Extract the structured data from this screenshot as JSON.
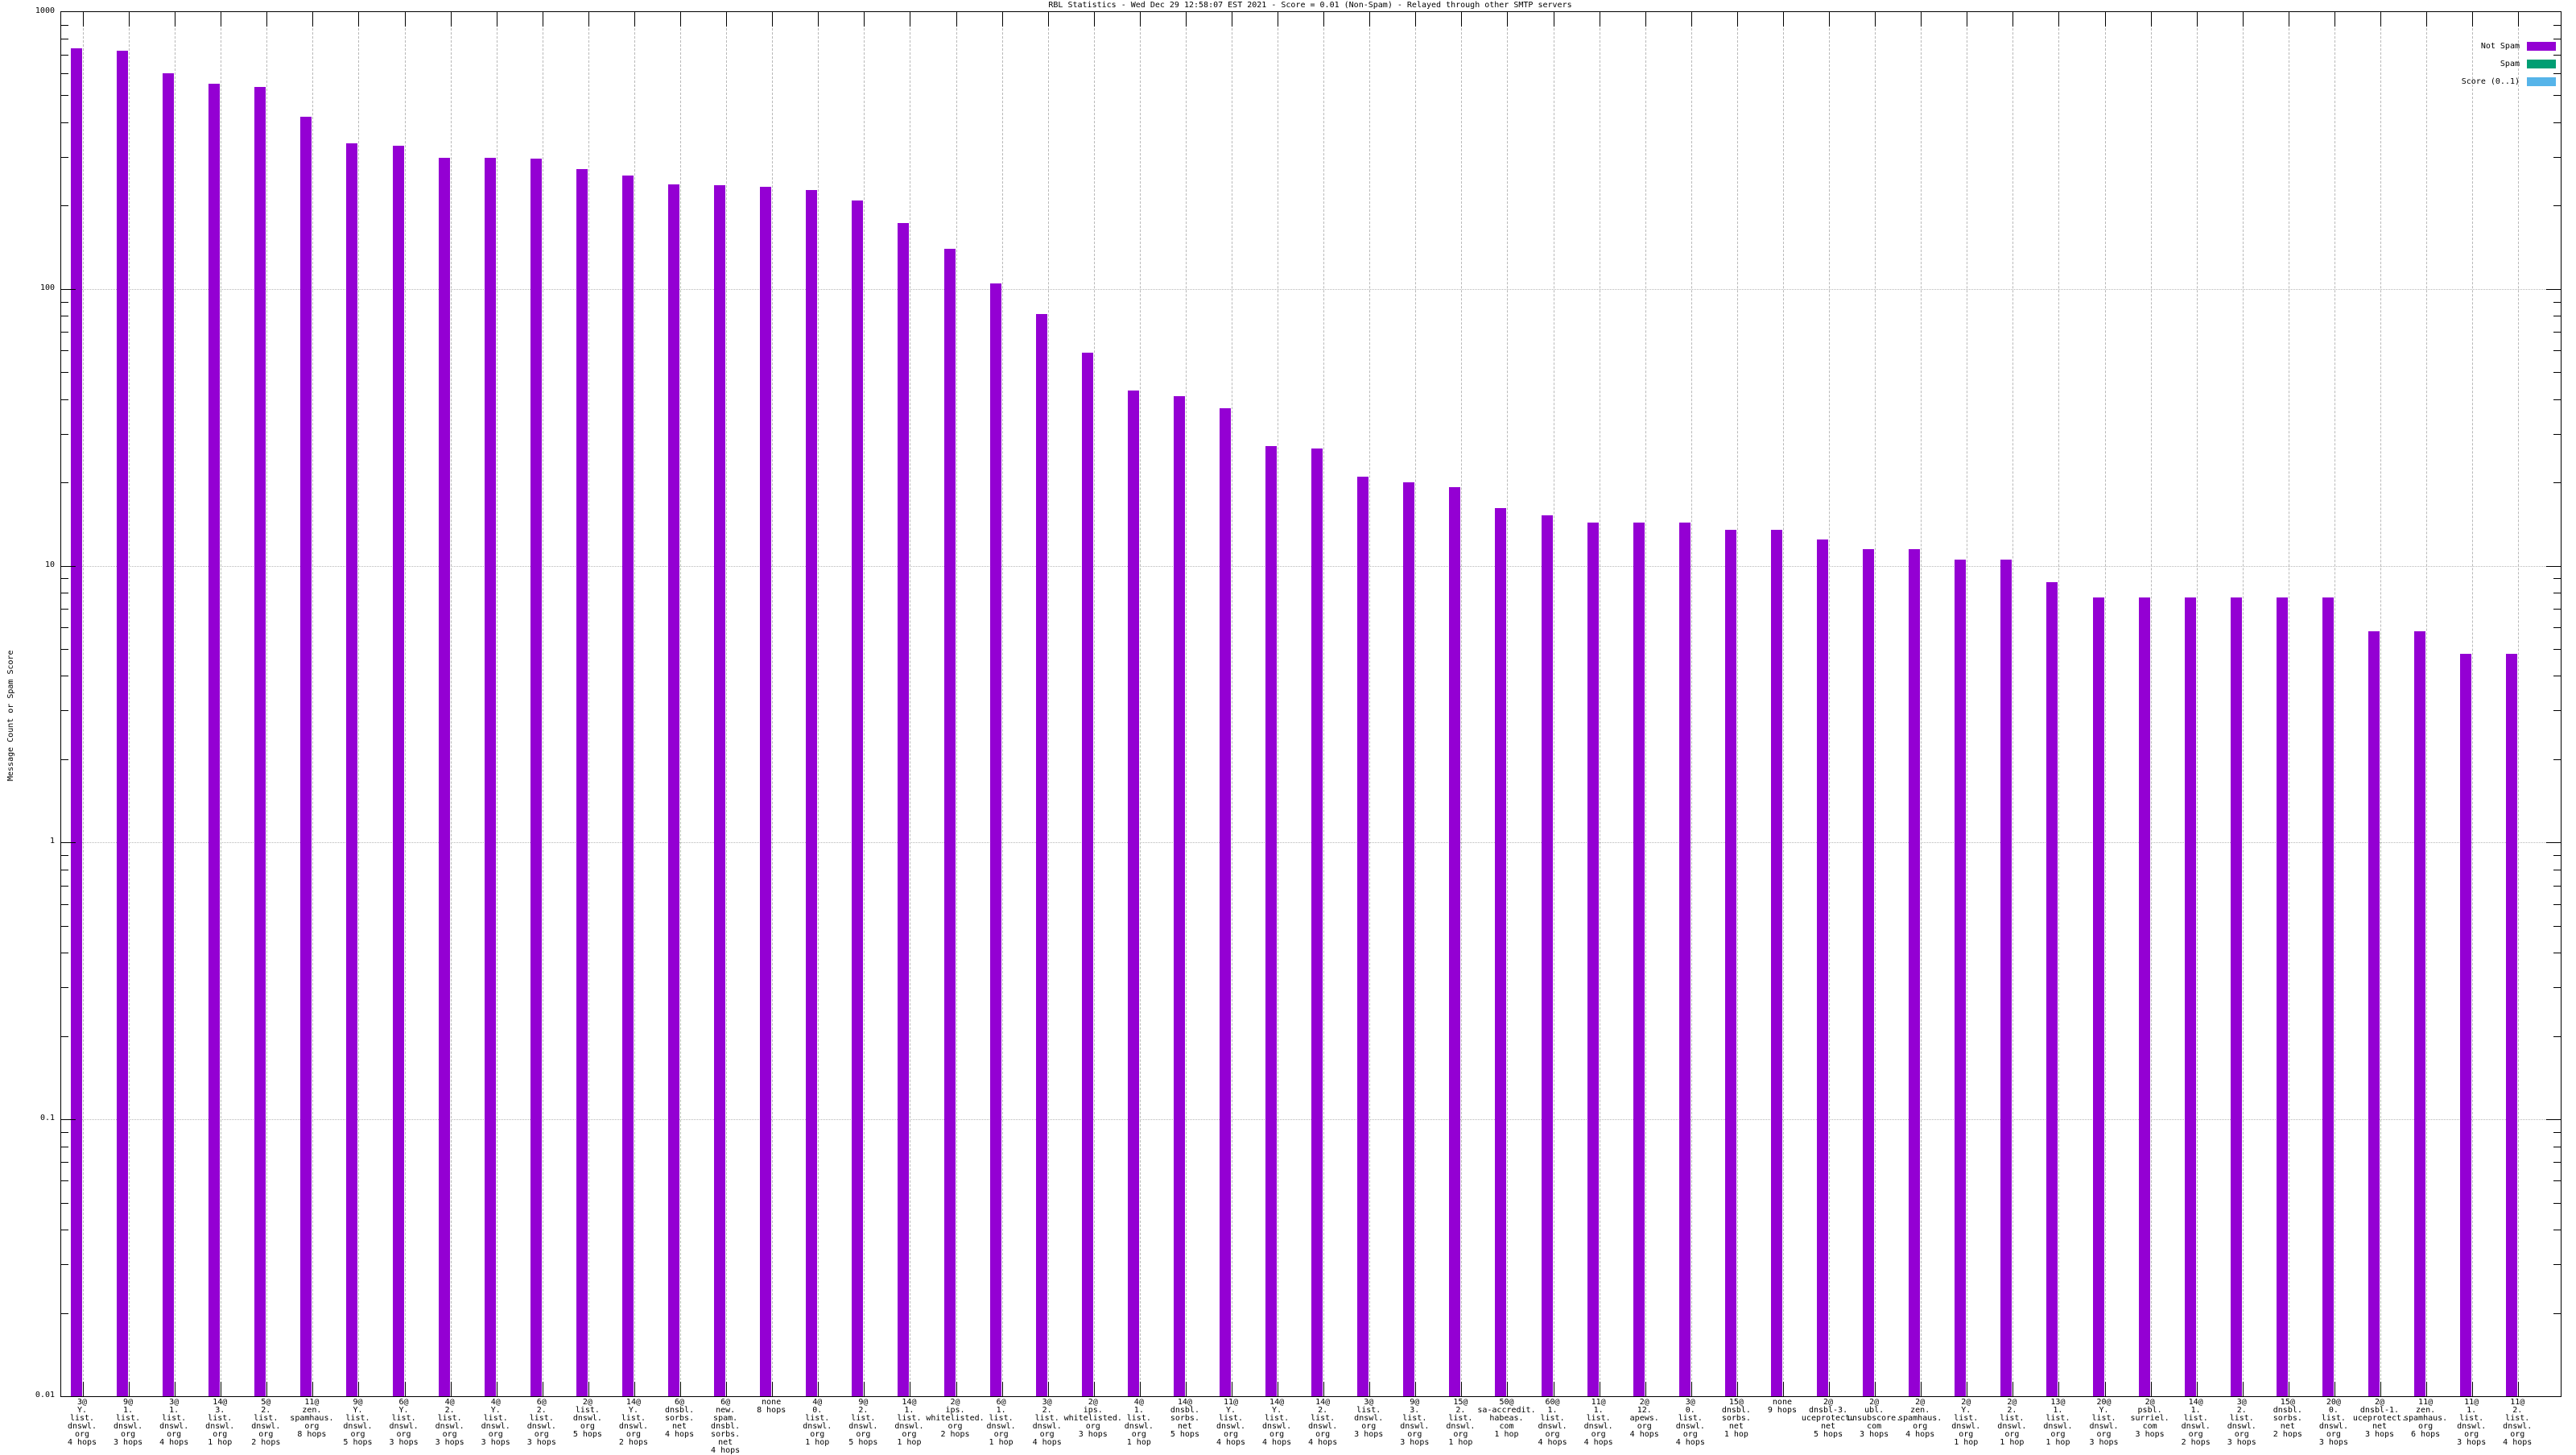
{
  "title": "RBL Statistics - Wed Dec 29 12:58:07 EST 2021 - Score = 0.01 (Non-Spam) - Relayed through other SMTP servers",
  "y_axis": {
    "label": "Message Count or Spam Score",
    "tick_labels": [
      "1000",
      "100",
      "10",
      "1",
      "0.1",
      "0.01"
    ]
  },
  "legend": {
    "items": [
      {
        "label": "Not Spam",
        "color": "#9400D3"
      },
      {
        "label": "Spam",
        "color": "#009E73"
      },
      {
        "label": "Score (0..1)",
        "color": "#56B4E9"
      }
    ]
  },
  "chart_data": {
    "type": "bar",
    "title": "RBL Statistics - Wed Dec 29 12:58:07 EST 2021 - Score = 0.01 (Non-Spam) - Relayed through other SMTP servers",
    "xlabel": "",
    "ylabel": "Message Count or Spam Score",
    "y_scale": "log10",
    "ylim": [
      0.01,
      1000
    ],
    "y_ticks": [
      1000,
      100,
      10,
      1,
      0.1,
      0.01
    ],
    "grid": true,
    "legend_position": "top-right",
    "series_name": "Not Spam",
    "bar_color": "#9400D3",
    "bars": [
      {
        "lines": [
          "3@",
          "Y.",
          "list.",
          "dnswl.",
          "org",
          "4 hops"
        ],
        "value": 740
      },
      {
        "lines": [
          "9@",
          "1.",
          "list.",
          "dnswl.",
          "org",
          "3 hops"
        ],
        "value": 725
      },
      {
        "lines": [
          "3@",
          "1.",
          "list.",
          "dnswl.",
          "org",
          "4 hops"
        ],
        "value": 600
      },
      {
        "lines": [
          "14@",
          "3.",
          "list.",
          "dnswl.",
          "org",
          "1 hop"
        ],
        "value": 550
      },
      {
        "lines": [
          "5@",
          "2.",
          "list.",
          "dnswl.",
          "org",
          "2 hops"
        ],
        "value": 535
      },
      {
        "lines": [
          "11@",
          "zen.",
          "spamhaus.",
          "org",
          "8 hops"
        ],
        "value": 420
      },
      {
        "lines": [
          "9@",
          "Y.",
          "list.",
          "dnswl.",
          "org",
          "5 hops"
        ],
        "value": 335
      },
      {
        "lines": [
          "6@",
          "Y.",
          "list.",
          "dnswl.",
          "org",
          "3 hops"
        ],
        "value": 330
      },
      {
        "lines": [
          "4@",
          "2.",
          "list.",
          "dnswl.",
          "org",
          "3 hops"
        ],
        "value": 298
      },
      {
        "lines": [
          "4@",
          "Y.",
          "list.",
          "dnswl.",
          "org",
          "3 hops"
        ],
        "value": 298
      },
      {
        "lines": [
          "6@",
          "2.",
          "list.",
          "dnswl.",
          "org",
          "3 hops"
        ],
        "value": 296
      },
      {
        "lines": [
          "2@",
          "list.",
          "dnswl.",
          "org",
          "5 hops"
        ],
        "value": 270
      },
      {
        "lines": [
          "14@",
          "Y.",
          "list.",
          "dnswl.",
          "org",
          "2 hops"
        ],
        "value": 257
      },
      {
        "lines": [
          "6@",
          "dnsbl.",
          "sorbs.",
          "net",
          "4 hops"
        ],
        "value": 238
      },
      {
        "lines": [
          "6@",
          "new.",
          "spam.",
          "dnsbl.",
          "sorbs.",
          "net",
          "4 hops"
        ],
        "value": 237
      },
      {
        "lines": [
          "none",
          "8 hops"
        ],
        "value": 234
      },
      {
        "lines": [
          "4@",
          "0.",
          "list.",
          "dnswl.",
          "org",
          "1 hop"
        ],
        "value": 228
      },
      {
        "lines": [
          "9@",
          "2.",
          "list.",
          "dnswl.",
          "org",
          "5 hops"
        ],
        "value": 208
      },
      {
        "lines": [
          "14@",
          "1.",
          "list.",
          "dnswl.",
          "org",
          "1 hop"
        ],
        "value": 173
      },
      {
        "lines": [
          "2@",
          "ips.",
          "whitelisted.",
          "org",
          "2 hops"
        ],
        "value": 140
      },
      {
        "lines": [
          "6@",
          "1.",
          "list.",
          "dnswl.",
          "org",
          "1 hop"
        ],
        "value": 105
      },
      {
        "lines": [
          "3@",
          "2.",
          "list.",
          "dnswl.",
          "org",
          "4 hops"
        ],
        "value": 81
      },
      {
        "lines": [
          "2@",
          "ips.",
          "whitelisted.",
          "org",
          "3 hops"
        ],
        "value": 59
      },
      {
        "lines": [
          "4@",
          "1.",
          "list.",
          "dnswl.",
          "org",
          "1 hop"
        ],
        "value": 43
      },
      {
        "lines": [
          "14@",
          "dnsbl.",
          "sorbs.",
          "net",
          "5 hops"
        ],
        "value": 41
      },
      {
        "lines": [
          "11@",
          "Y.",
          "list.",
          "dnswl.",
          "org",
          "4 hops"
        ],
        "value": 37
      },
      {
        "lines": [
          "14@",
          "Y.",
          "list.",
          "dnswl.",
          "org",
          "4 hops"
        ],
        "value": 27
      },
      {
        "lines": [
          "14@",
          "2.",
          "list.",
          "dnswl.",
          "org",
          "4 hops"
        ],
        "value": 26.5
      },
      {
        "lines": [
          "3@",
          "list.",
          "dnswl.",
          "org",
          "3 hops"
        ],
        "value": 21
      },
      {
        "lines": [
          "9@",
          "3.",
          "list.",
          "dnswl.",
          "org",
          "3 hops"
        ],
        "value": 20
      },
      {
        "lines": [
          "15@",
          "2.",
          "list.",
          "dnswl.",
          "org",
          "1 hop"
        ],
        "value": 19.2
      },
      {
        "lines": [
          "50@",
          "sa-accredit.",
          "habeas.",
          "com",
          "1 hop"
        ],
        "value": 16.2
      },
      {
        "lines": [
          "60@",
          "1.",
          "list.",
          "dnswl.",
          "org",
          "4 hops"
        ],
        "value": 15.2
      },
      {
        "lines": [
          "11@",
          "1.",
          "list.",
          "dnswl.",
          "org",
          "4 hops"
        ],
        "value": 14.3
      },
      {
        "lines": [
          "2@",
          "12.",
          "apews.",
          "org",
          "4 hops"
        ],
        "value": 14.3
      },
      {
        "lines": [
          "3@",
          "0.",
          "list.",
          "dnswl.",
          "org",
          "4 hops"
        ],
        "value": 14.3
      },
      {
        "lines": [
          "15@",
          "dnsbl.",
          "sorbs.",
          "net",
          "1 hop"
        ],
        "value": 13.5
      },
      {
        "lines": [
          "none",
          "9 hops"
        ],
        "value": 13.5
      },
      {
        "lines": [
          "2@",
          "dnsbl-3.",
          "uceprotect.",
          "net",
          "5 hops"
        ],
        "value": 12.4
      },
      {
        "lines": [
          "2@",
          "ubl.",
          "unsubscore.",
          "com",
          "3 hops"
        ],
        "value": 11.5
      },
      {
        "lines": [
          "2@",
          "zen.",
          "spamhaus.",
          "org",
          "4 hops"
        ],
        "value": 11.5
      },
      {
        "lines": [
          "2@",
          "Y.",
          "list.",
          "dnswl.",
          "org",
          "1 hop"
        ],
        "value": 10.5
      },
      {
        "lines": [
          "2@",
          "2.",
          "list.",
          "dnswl.",
          "org",
          "1 hop"
        ],
        "value": 10.5
      },
      {
        "lines": [
          "13@",
          "1.",
          "list.",
          "dnswl.",
          "org",
          "1 hop"
        ],
        "value": 8.7
      },
      {
        "lines": [
          "20@",
          "Y.",
          "list.",
          "dnswl.",
          "org",
          "3 hops"
        ],
        "value": 7.7
      },
      {
        "lines": [
          "2@",
          "psbl.",
          "surriel.",
          "com",
          "3 hops"
        ],
        "value": 7.7
      },
      {
        "lines": [
          "14@",
          "1.",
          "list.",
          "dnswl.",
          "org",
          "2 hops"
        ],
        "value": 7.7
      },
      {
        "lines": [
          "3@",
          "2.",
          "list.",
          "dnswl.",
          "org",
          "3 hops"
        ],
        "value": 7.7
      },
      {
        "lines": [
          "15@",
          "dnsbl.",
          "sorbs.",
          "net",
          "2 hops"
        ],
        "value": 7.7
      },
      {
        "lines": [
          "20@",
          "0.",
          "list.",
          "dnswl.",
          "org",
          "3 hops"
        ],
        "value": 7.7
      },
      {
        "lines": [
          "2@",
          "dnsbl-1.",
          "uceprotect.",
          "net",
          "3 hops"
        ],
        "value": 5.8
      },
      {
        "lines": [
          "11@",
          "zen.",
          "spamhaus.",
          "org",
          "6 hops"
        ],
        "value": 5.8
      },
      {
        "lines": [
          "11@",
          "1.",
          "list.",
          "dnswl.",
          "org",
          "3 hops"
        ],
        "value": 4.8
      },
      {
        "lines": [
          "11@",
          "2.",
          "list.",
          "dnswl.",
          "org",
          "4 hops"
        ],
        "value": 4.8
      }
    ]
  }
}
